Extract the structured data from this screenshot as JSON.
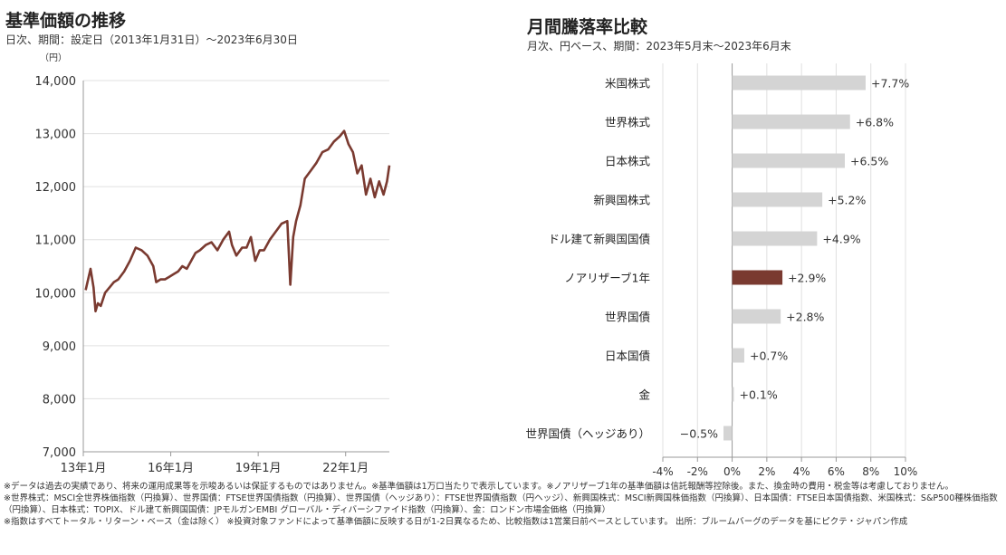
{
  "left": {
    "title": "基準価額の推移",
    "subtitle": "日次、期間：設定日（2013年1月31日）～2023年6月30日",
    "unit": "（円）"
  },
  "right": {
    "title": "月間騰落率比較",
    "subtitle": "月次、円ベース、期間：2023年5月末～2023年6月末"
  },
  "colors": {
    "highlight": "#7a3a30",
    "bar": "#d4d4d4",
    "line": "#7a3a30",
    "grid": "#e0e0e0"
  },
  "chart_data": [
    {
      "type": "line",
      "ylim": [
        7000,
        14000
      ],
      "yticks": [
        "7,000",
        "8,000",
        "9,000",
        "10,000",
        "11,000",
        "12,000",
        "13,000",
        "14,000"
      ],
      "ytick_values": [
        7000,
        8000,
        9000,
        10000,
        11000,
        12000,
        13000,
        14000
      ],
      "xtick_labels": [
        "13年1月",
        "16年1月",
        "19年1月",
        "22年1月"
      ],
      "xtick_years": [
        2013.0,
        2016.0,
        2019.0,
        2022.0
      ],
      "xlim_years": [
        2013.0,
        2023.5
      ],
      "series": [
        {
          "x": [
            2013.08,
            2013.25,
            2013.35,
            2013.42,
            2013.5,
            2013.6,
            2013.75,
            2013.9,
            2014.05,
            2014.2,
            2014.4,
            2014.6,
            2014.8,
            2015.0,
            2015.2,
            2015.4,
            2015.5,
            2015.65,
            2015.8,
            2015.95,
            2016.1,
            2016.25,
            2016.4,
            2016.55,
            2016.7,
            2016.85,
            2017.0,
            2017.2,
            2017.4,
            2017.6,
            2017.8,
            2018.0,
            2018.1,
            2018.25,
            2018.45,
            2018.6,
            2018.75,
            2018.9,
            2019.05,
            2019.2,
            2019.4,
            2019.6,
            2019.8,
            2020.0,
            2020.1,
            2020.2,
            2020.3,
            2020.45,
            2020.6,
            2020.8,
            2021.0,
            2021.2,
            2021.4,
            2021.6,
            2021.8,
            2021.95,
            2022.1,
            2022.25,
            2022.4,
            2022.55,
            2022.7,
            2022.85,
            2023.0,
            2023.15,
            2023.3,
            2023.42,
            2023.5
          ],
          "y": [
            10050,
            10450,
            10100,
            9650,
            9800,
            9750,
            10000,
            10100,
            10200,
            10250,
            10400,
            10600,
            10850,
            10800,
            10700,
            10500,
            10200,
            10250,
            10250,
            10300,
            10350,
            10400,
            10500,
            10450,
            10600,
            10750,
            10800,
            10900,
            10950,
            10800,
            11000,
            11150,
            10900,
            10700,
            10850,
            10850,
            11050,
            10600,
            10800,
            10800,
            11000,
            11150,
            11300,
            11350,
            10150,
            11050,
            11350,
            11650,
            12150,
            12300,
            12450,
            12650,
            12700,
            12850,
            12950,
            13050,
            12800,
            12650,
            12250,
            12400,
            11850,
            12150,
            11800,
            12100,
            11850,
            12100,
            12400
          ]
        }
      ]
    },
    {
      "type": "bar",
      "orientation": "horizontal",
      "xlim": [
        -4,
        10
      ],
      "xticks": [
        "-4%",
        "-2%",
        "0%",
        "2%",
        "4%",
        "6%",
        "8%",
        "10%"
      ],
      "xtick_values": [
        -4,
        -2,
        0,
        2,
        4,
        6,
        8,
        10
      ],
      "categories": [
        "米国株式",
        "世界株式",
        "日本株式",
        "新興国株式",
        "ドル建て新興国国債",
        "ノアリザーブ1年",
        "世界国債",
        "日本国債",
        "金",
        "世界国債（ヘッジあり）"
      ],
      "values": [
        7.7,
        6.8,
        6.5,
        5.2,
        4.9,
        2.9,
        2.8,
        0.7,
        0.1,
        -0.5
      ],
      "labels": [
        "+7.7%",
        "+6.8%",
        "+6.5%",
        "+5.2%",
        "+4.9%",
        "+2.9%",
        "+2.8%",
        "+0.7%",
        "+0.1%",
        "−0.5%"
      ],
      "highlight": "ノアリザーブ1年"
    }
  ],
  "footnotes": [
    "※データは過去の実績であり、将来の運用成果等を示唆あるいは保証するものではありません。※基準価額は1万口当たりで表示しています。※ノアリザーブ1年の基準価額は信託報酬等控除後。また、換金時の費用・税金等は考慮しておりません。",
    "※世界株式：MSCI全世界株価指数（円換算）、世界国債：FTSE世界国債指数（円換算）、世界国債（ヘッジあり）：FTSE世界国債指数（円ヘッジ）、新興国株式：MSCI新興国株価指数（円換算）、日本国債：FTSE日本国債指数、米国株式：S&P500種株価指数（円換算）、日本株式：TOPIX、ドル建て新興国国債：JPモルガンEMBI グローバル・ディバーシファイド指数（円換算）、金：ロンドン市場金価格（円換算）",
    "※指数はすべてトータル・リターン・ベース（金は除く） ※投資対象ファンドによって基準価額に反映する日が1-2日異なるため、比較指数は1営業日前ベースとしています。 出所：ブルームバーグのデータを基にピクテ・ジャパン作成"
  ]
}
